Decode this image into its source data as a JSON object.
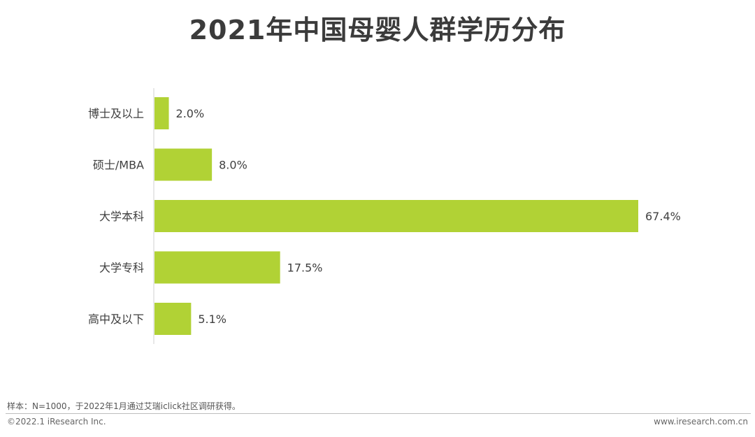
{
  "title": "2021年中国母婴人群学历分布",
  "chart_data": {
    "type": "bar",
    "orientation": "horizontal",
    "categories": [
      "博士及以上",
      "硕士/MBA",
      "大学本科",
      "大学专科",
      "高中及以下"
    ],
    "values": [
      2.0,
      8.0,
      67.4,
      17.5,
      5.1
    ],
    "value_labels": [
      "2.0%",
      "8.0%",
      "67.4%",
      "17.5%",
      "5.1%"
    ],
    "bar_color": "#b1d235",
    "xlim": [
      0,
      67.4
    ],
    "grid": false,
    "legend": "none"
  },
  "footer": {
    "note": "样本：N=1000，于2022年1月通过艾瑞iclick社区调研获得。",
    "copyright": "©2022.1 iResearch Inc.",
    "site": "www.iresearch.com.cn"
  }
}
